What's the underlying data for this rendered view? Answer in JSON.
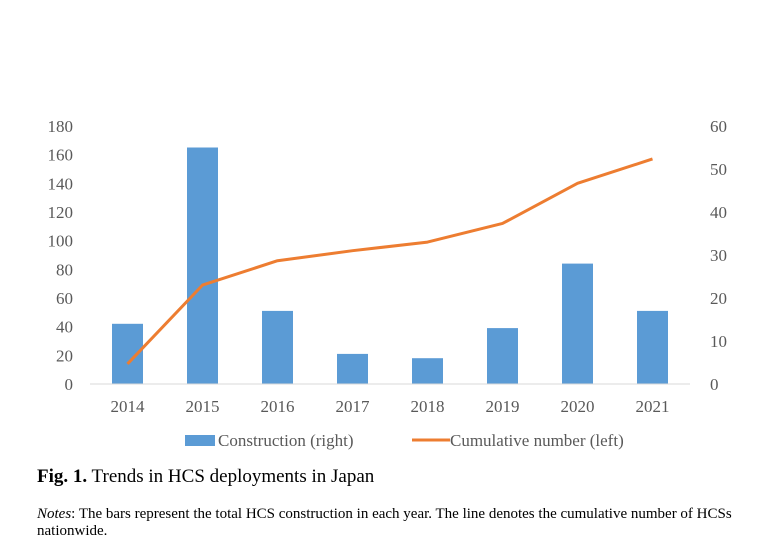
{
  "chart_data": {
    "type": "bar+line",
    "categories": [
      "2014",
      "2015",
      "2016",
      "2017",
      "2018",
      "2019",
      "2020",
      "2021"
    ],
    "series": [
      {
        "name": "Construction (right)",
        "type": "bar",
        "axis": "right",
        "color": "#5B9BD5",
        "values": [
          14,
          55,
          17,
          7,
          6,
          13,
          28,
          17
        ]
      },
      {
        "name": "Cumulative number (left)",
        "type": "line",
        "axis": "left",
        "color": "#ED7D31",
        "values": [
          14,
          69,
          86,
          93,
          99,
          112,
          140,
          157
        ]
      }
    ],
    "left_axis": {
      "ylim": [
        0,
        180
      ],
      "ticks": [
        "0",
        "20",
        "40",
        "60",
        "80",
        "100",
        "120",
        "140",
        "160",
        "180"
      ]
    },
    "right_axis": {
      "ylim": [
        0,
        60
      ],
      "ticks": [
        "0",
        "10",
        "20",
        "30",
        "40",
        "50",
        "60"
      ]
    },
    "legend_position": "bottom",
    "grid": false
  },
  "caption": {
    "label": "Fig. 1.",
    "text": " Trends in HCS deployments in Japan"
  },
  "notes": {
    "label": "Notes",
    "text": ": The bars represent the total HCS construction in each year. The line denotes the cumulative number of HCSs nationwide."
  }
}
